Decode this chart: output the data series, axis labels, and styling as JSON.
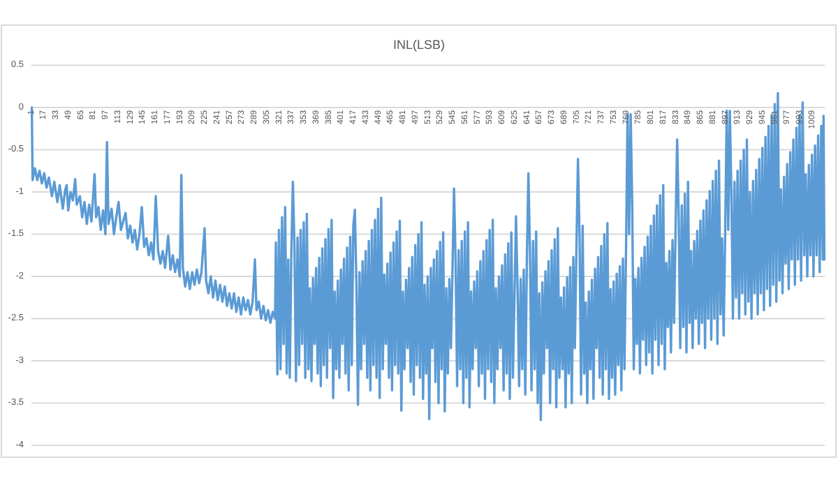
{
  "chart_data": {
    "type": "line",
    "title": "INL(LSB)",
    "xlim": [
      0.5,
      1024.5
    ],
    "xticks": [
      1,
      17,
      33,
      49,
      65,
      81,
      97,
      113,
      129,
      145,
      161,
      177,
      193,
      209,
      225,
      241,
      257,
      273,
      289,
      305,
      321,
      337,
      353,
      369,
      385,
      401,
      417,
      433,
      449,
      465,
      481,
      497,
      513,
      529,
      545,
      561,
      577,
      593,
      609,
      625,
      641,
      657,
      673,
      689,
      705,
      721,
      737,
      753,
      769,
      785,
      801,
      817,
      833,
      849,
      865,
      881,
      897,
      913,
      929,
      945,
      961,
      977,
      993,
      1009
    ],
    "ylim": [
      -4,
      0.5
    ],
    "yticks": [
      -4,
      -3.5,
      -3,
      -2.5,
      -2,
      -1.5,
      -1,
      -0.5,
      0,
      0.5
    ],
    "grid": "y",
    "series": [
      {
        "color": "#5b9bd5",
        "x": [
          1,
          2,
          5,
          8,
          11,
          14,
          17,
          20,
          23,
          27,
          30,
          34,
          37,
          41,
          44,
          46,
          48,
          51,
          54,
          57,
          59,
          63,
          66,
          69,
          72,
          75,
          78,
          82,
          84,
          87,
          90,
          93,
          96,
          98,
          100,
          104,
          107,
          110,
          113,
          116,
          119,
          122,
          125,
          128,
          131,
          134,
          137,
          140,
          143,
          146,
          149,
          152,
          155,
          158,
          161,
          164,
          167,
          170,
          173,
          177,
          180,
          183,
          186,
          189,
          192,
          194,
          196,
          199,
          202,
          205,
          208,
          211,
          214,
          217,
          220,
          224,
          226,
          229,
          232,
          235,
          238,
          241,
          244,
          247,
          250,
          253,
          256,
          259,
          262,
          265,
          268,
          271,
          274,
          277,
          280,
          283,
          286,
          289,
          291,
          294,
          297,
          300,
          303,
          306,
          309,
          312,
          315,
          316,
          318,
          320,
          322,
          324,
          326,
          328,
          330,
          332,
          334,
          336,
          338,
          340,
          342,
          344,
          346,
          348,
          350,
          352,
          354,
          356,
          358,
          360,
          362,
          364,
          366,
          368,
          370,
          372,
          374,
          376,
          378,
          380,
          382,
          384,
          386,
          388,
          390,
          392,
          394,
          396,
          398,
          400,
          402,
          404,
          406,
          408,
          410,
          412,
          414,
          416,
          418,
          420,
          422,
          424,
          426,
          428,
          430,
          432,
          434,
          436,
          438,
          440,
          442,
          444,
          446,
          448,
          450,
          452,
          454,
          456,
          458,
          460,
          462,
          464,
          466,
          468,
          470,
          472,
          474,
          476,
          478,
          480,
          482,
          484,
          486,
          488,
          490,
          492,
          494,
          496,
          498,
          500,
          502,
          504,
          506,
          508,
          510,
          512,
          514,
          516,
          518,
          520,
          522,
          524,
          526,
          528,
          530,
          532,
          534,
          536,
          538,
          540,
          542,
          544,
          546,
          548,
          550,
          552,
          554,
          556,
          558,
          560,
          562,
          564,
          566,
          568,
          570,
          572,
          574,
          576,
          578,
          580,
          582,
          584,
          586,
          588,
          590,
          592,
          594,
          596,
          598,
          600,
          602,
          604,
          606,
          608,
          610,
          612,
          614,
          616,
          618,
          620,
          622,
          624,
          626,
          628,
          630,
          632,
          634,
          636,
          638,
          640,
          642,
          644,
          646,
          648,
          650,
          652,
          654,
          656,
          658,
          660,
          662,
          664,
          666,
          668,
          670,
          672,
          674,
          676,
          678,
          680,
          682,
          684,
          686,
          688,
          690,
          692,
          694,
          696,
          698,
          700,
          702,
          704,
          706,
          708,
          710,
          712,
          714,
          716,
          718,
          720,
          722,
          724,
          726,
          728,
          730,
          732,
          734,
          736,
          738,
          740,
          742,
          744,
          746,
          748,
          750,
          752,
          754,
          756,
          758,
          760,
          762,
          764,
          766,
          768,
          770,
          772,
          774,
          776,
          778,
          780,
          782,
          784,
          786,
          788,
          790,
          792,
          794,
          796,
          798,
          800,
          802,
          804,
          806,
          808,
          810,
          812,
          814,
          816,
          818,
          820,
          822,
          824,
          826,
          828,
          830,
          832,
          834,
          836,
          838,
          840,
          842,
          844,
          846,
          848,
          850,
          852,
          854,
          856,
          858,
          860,
          862,
          864,
          866,
          868,
          870,
          872,
          874,
          876,
          878,
          880,
          882,
          884,
          886,
          888,
          890,
          892,
          894,
          896,
          898,
          900,
          902,
          904,
          906,
          908,
          910,
          912,
          914,
          916,
          918,
          920,
          922,
          924,
          926,
          928,
          930,
          932,
          934,
          936,
          938,
          940,
          942,
          944,
          946,
          948,
          950,
          952,
          954,
          956,
          958,
          960,
          962,
          964,
          966,
          968,
          970,
          972,
          974,
          976,
          978,
          980,
          982,
          984,
          986,
          988,
          990,
          992,
          994,
          996,
          998,
          1000,
          1002,
          1004,
          1006,
          1008,
          1010,
          1012,
          1014,
          1016,
          1018,
          1020,
          1022,
          1023,
          1024
        ],
        "values": [
          0,
          -0.86,
          -0.72,
          -0.86,
          -0.75,
          -0.9,
          -0.78,
          -0.95,
          -0.83,
          -1.05,
          -0.88,
          -1.12,
          -0.92,
          -1.2,
          -0.98,
          -0.92,
          -1.22,
          -1.0,
          -1.1,
          -0.85,
          -1.15,
          -1.05,
          -1.3,
          -1.12,
          -1.38,
          -1.15,
          -1.35,
          -0.79,
          -1.3,
          -1.18,
          -1.45,
          -1.22,
          -1.5,
          -0.41,
          -1.38,
          -1.2,
          -1.5,
          -1.3,
          -1.12,
          -1.45,
          -1.35,
          -1.25,
          -1.55,
          -1.4,
          -1.6,
          -1.45,
          -1.68,
          -1.5,
          -1.18,
          -1.65,
          -1.55,
          -1.75,
          -1.6,
          -1.8,
          -1.05,
          -1.7,
          -1.85,
          -1.7,
          -1.9,
          -1.52,
          -1.92,
          -1.75,
          -1.95,
          -1.8,
          -2.0,
          -0.8,
          -1.9,
          -2.12,
          -1.95,
          -2.15,
          -1.95,
          -2.1,
          -1.92,
          -2.08,
          -1.95,
          -1.43,
          -2.05,
          -2.2,
          -2.0,
          -2.25,
          -2.05,
          -2.28,
          -2.1,
          -2.3,
          -2.12,
          -2.35,
          -2.2,
          -2.38,
          -2.2,
          -2.42,
          -2.25,
          -2.45,
          -2.25,
          -2.4,
          -2.28,
          -2.45,
          -2.3,
          -1.8,
          -2.4,
          -2.3,
          -2.5,
          -2.35,
          -2.52,
          -2.4,
          -2.55,
          -2.42,
          -2.5,
          -1.6,
          -3.16,
          -1.45,
          -3.1,
          -1.3,
          -2.8,
          -1.18,
          -3.15,
          -1.8,
          -3.2,
          -1.72,
          -0.88,
          -1.63,
          -3.24,
          -1.54,
          -3.05,
          -1.45,
          -2.8,
          -1.36,
          -3.2,
          -1.26,
          -3.1,
          -2.14,
          -3.24,
          -2.02,
          -2.8,
          -1.9,
          -3.15,
          -1.78,
          -3.3,
          -1.67,
          -3.05,
          -1.56,
          -3.2,
          -1.44,
          -2.85,
          -1.33,
          -3.44,
          -2.18,
          -3.1,
          -2.05,
          -3.2,
          -1.92,
          -2.8,
          -1.79,
          -3.15,
          -1.66,
          -3.35,
          -1.53,
          -3.05,
          -1.4,
          -1.21,
          -2.08,
          -3.52,
          -1.95,
          -3.1,
          -1.82,
          -2.8,
          -1.7,
          -3.2,
          -1.58,
          -3.35,
          -1.45,
          -3.05,
          -1.33,
          -3.2,
          -1.2,
          -3.44,
          -1.07,
          -3.1,
          -1.98,
          -2.8,
          -1.85,
          -3.2,
          -1.72,
          -3.35,
          -1.6,
          -3.05,
          -1.47,
          -3.15,
          -1.34,
          -3.59,
          -2.18,
          -3.1,
          -2.04,
          -2.85,
          -1.9,
          -3.25,
          -1.77,
          -3.4,
          -1.63,
          -3.05,
          -1.5,
          -3.2,
          -1.36,
          -3.45,
          -2.1,
          -3.15,
          -2.0,
          -3.69,
          -1.9,
          -2.85,
          -1.8,
          -3.25,
          -1.7,
          -3.5,
          -1.59,
          -3.1,
          -1.48,
          -3.6,
          -2.14,
          -3.15,
          -2.03,
          -2.85,
          -1.92,
          -0.96,
          -1.8,
          -3.3,
          -1.69,
          -3.1,
          -1.58,
          -3.5,
          -1.47,
          -3.2,
          -1.36,
          -3.55,
          -2.18,
          -3.1,
          -2.06,
          -2.85,
          -1.94,
          -3.3,
          -1.82,
          -3.15,
          -1.7,
          -3.45,
          -1.57,
          -3.1,
          -1.45,
          -3.25,
          -1.33,
          -3.5,
          -2.14,
          -3.1,
          -2.0,
          -2.85,
          -1.87,
          -3.35,
          -1.74,
          -3.15,
          -1.61,
          -3.45,
          -1.48,
          -3.2,
          -2.25,
          -1.29,
          -2.14,
          -3.3,
          -2.03,
          -3.1,
          -1.92,
          -3.4,
          -1.81,
          -0.78,
          -1.7,
          -3.35,
          -1.58,
          -3.1,
          -1.47,
          -3.5,
          -2.2,
          -3.7,
          -2.07,
          -3.15,
          -1.94,
          -2.85,
          -1.82,
          -3.5,
          -1.69,
          -3.1,
          -1.56,
          -3.55,
          -1.43,
          -3.2,
          -2.25,
          -3.1,
          -2.13,
          -3.55,
          -2.01,
          -3.15,
          -1.89,
          -3.5,
          -1.77,
          -2.85,
          -1.65,
          -0.61,
          -1.52,
          -3.4,
          -1.4,
          -3.15,
          -2.31,
          -3.5,
          -2.18,
          -3.1,
          -2.04,
          -3.45,
          -1.91,
          -2.85,
          -1.77,
          -3.2,
          -1.64,
          -3.4,
          -1.5,
          -3.1,
          -1.37,
          -3.45,
          -2.15,
          -3.2,
          -2.06,
          -3.4,
          -1.97,
          -3.05,
          -1.88,
          -3.35,
          -1.79,
          -3.1,
          -1.7,
          -0.08,
          -1.5,
          -0.08,
          -1.15,
          -3.1,
          -2.03,
          -2.8,
          -1.9,
          -3.15,
          -1.78,
          -2.75,
          -1.65,
          -3.05,
          -1.53,
          -2.9,
          -1.4,
          -3.15,
          -1.28,
          -2.75,
          -1.16,
          -3.05,
          -1.04,
          -2.8,
          -0.92,
          -3.1,
          -1.84,
          -2.6,
          -1.7,
          -2.9,
          -1.57,
          -2.55,
          -1.43,
          -0.38,
          -1.29,
          -2.85,
          -1.16,
          -2.6,
          -1.02,
          -2.9,
          -0.88,
          -2.55,
          -1.7,
          -2.85,
          -1.58,
          -2.5,
          -1.46,
          -2.8,
          -1.34,
          -2.55,
          -1.22,
          -2.85,
          -1.1,
          -2.5,
          -0.99,
          -2.75,
          -0.87,
          -2.5,
          -0.75,
          -2.8,
          -0.63,
          -2.45,
          -1.55,
          -2.7,
          -1.5,
          -0.04,
          -1.45,
          -0.04,
          -1.0,
          -2.5,
          -0.88,
          -2.25,
          -0.75,
          -2.5,
          -0.63,
          -2.2,
          -0.5,
          -2.45,
          -0.38,
          -2.3,
          -1.0,
          -2.5,
          -0.87,
          -2.2,
          -0.74,
          -2.45,
          -0.61,
          -2.2,
          -0.48,
          -2.4,
          -0.35,
          -2.15,
          -0.22,
          -2.35,
          -0.09,
          -2.1,
          0.04,
          -2.3,
          0.17,
          -2.05,
          -0.97,
          -2.2,
          -0.82,
          -1.85,
          -0.67,
          -2.15,
          -0.53,
          -1.8,
          -0.38,
          -2.1,
          -0.24,
          -1.8,
          -0.09,
          -2.05,
          0.06,
          -1.75,
          -0.79,
          -2.0,
          -0.68,
          -1.75,
          -0.56,
          -2.0,
          -0.45,
          -1.75,
          -0.33,
          -1.95,
          -0.22,
          -1.8,
          -0.1,
          -1.8
        ]
      }
    ]
  }
}
